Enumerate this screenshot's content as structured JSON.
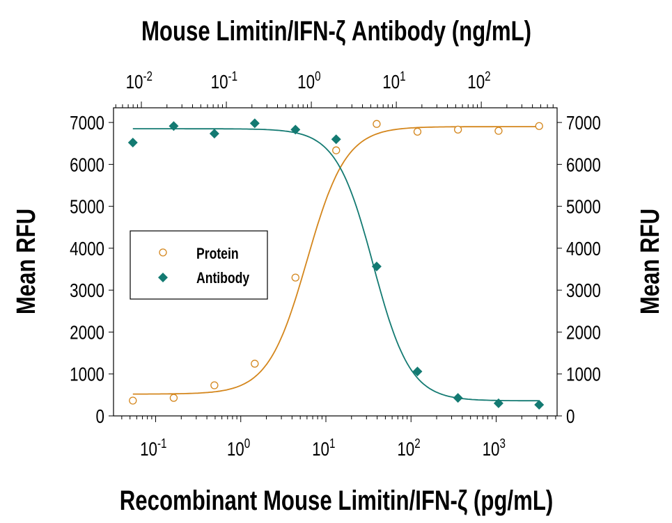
{
  "chart_data": {
    "type": "scatter",
    "title": "Mouse Limitin/IFN-ζ Antibody (ng/mL)",
    "xlabel": "Recombinant Mouse Limitin/IFN-ζ (pg/mL)",
    "ylabel": "Mean RFU",
    "ylabel_right": "Mean RFU",
    "x_scale": "log",
    "xlim": [
      0.032,
      5200
    ],
    "x_ticks": [
      {
        "base": "10",
        "exp": "-1",
        "value": 0.1
      },
      {
        "base": "10",
        "exp": "0",
        "value": 1
      },
      {
        "base": "10",
        "exp": "1",
        "value": 10
      },
      {
        "base": "10",
        "exp": "2",
        "value": 100
      },
      {
        "base": "10",
        "exp": "3",
        "value": 1000
      }
    ],
    "x_top_scale": "log",
    "x_top_lim": [
      0.0047,
      780
    ],
    "x_top_ticks": [
      {
        "base": "10",
        "exp": "-2",
        "value": 0.01
      },
      {
        "base": "10",
        "exp": "-1",
        "value": 0.1
      },
      {
        "base": "10",
        "exp": "0",
        "value": 1
      },
      {
        "base": "10",
        "exp": "1",
        "value": 10
      },
      {
        "base": "10",
        "exp": "2",
        "value": 100
      }
    ],
    "ylim": [
      0,
      7350
    ],
    "y_ticks": [
      "0",
      "1000",
      "2000",
      "3000",
      "4000",
      "5000",
      "6000",
      "7000"
    ],
    "grid": false,
    "legend_position": "center-left",
    "series": [
      {
        "name": "Protein",
        "color": "#d4861c",
        "marker": "open-circle",
        "x": [
          0.054,
          0.163,
          0.49,
          1.46,
          4.39,
          13.2,
          39.5,
          119,
          356,
          1067,
          3200
        ],
        "y": [
          365,
          430,
          730,
          1245,
          3300,
          6335,
          6965,
          6780,
          6830,
          6800,
          6915
        ],
        "fit": {
          "bottom": 520,
          "top": 6900,
          "ec50": 6.0,
          "hill": 1.9
        }
      },
      {
        "name": "Antibody",
        "color": "#137a72",
        "marker": "filled-diamond",
        "x": [
          0.054,
          0.163,
          0.49,
          1.46,
          4.39,
          13.2,
          39.5,
          119,
          356,
          1067,
          3200
        ],
        "y": [
          6520,
          6915,
          6735,
          6980,
          6830,
          6600,
          3565,
          1060,
          430,
          300,
          265
        ],
        "fit": {
          "bottom": 360,
          "top": 6850,
          "ec50": 36,
          "hill": 2.0
        }
      }
    ]
  }
}
